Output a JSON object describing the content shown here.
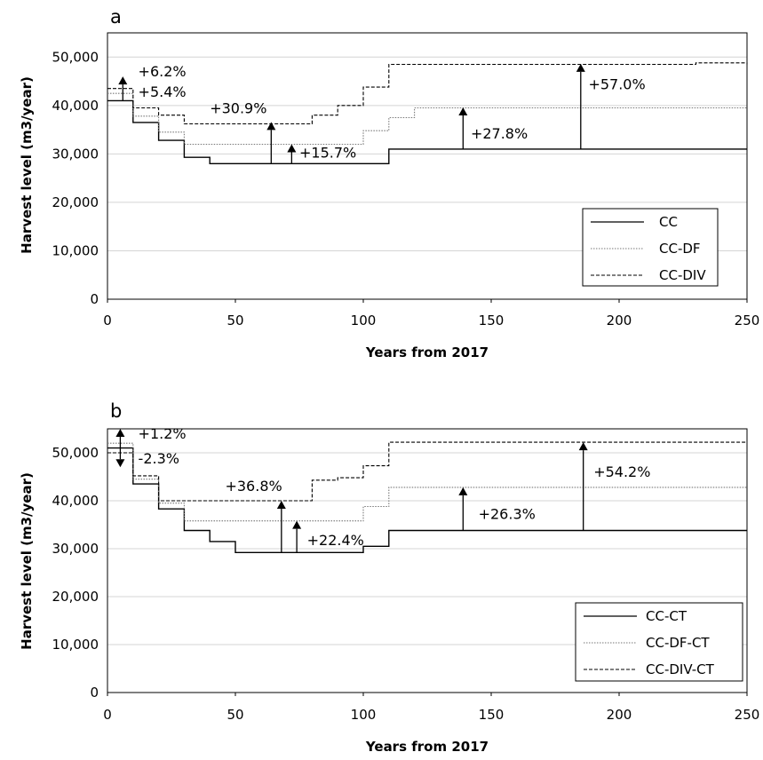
{
  "chart_data": [
    {
      "type": "line",
      "panel_label": "a",
      "title": "",
      "xlabel": "Years from 2017",
      "ylabel": "Harvest level (m3/year)",
      "xlim": [
        0,
        250
      ],
      "ylim": [
        0,
        55000
      ],
      "xticks": [
        "0",
        "50",
        "100",
        "150",
        "200",
        "250"
      ],
      "yticks": [
        "0",
        "10,000",
        "20,000",
        "30,000",
        "40,000",
        "50,000"
      ],
      "ytick_values": [
        0,
        10000,
        20000,
        30000,
        40000,
        50000
      ],
      "grid": "horizontal",
      "legend_position": "bottom-right",
      "series": [
        {
          "name": "CC",
          "style": "solid",
          "x": [
            0,
            10,
            20,
            30,
            40,
            100,
            110,
            250
          ],
          "y": [
            41000,
            36500,
            32800,
            29300,
            28000,
            28000,
            31000,
            31000
          ]
        },
        {
          "name": "CC-DF",
          "style": "dotted",
          "x": [
            0,
            10,
            20,
            30,
            90,
            100,
            110,
            120,
            250
          ],
          "y": [
            42500,
            37800,
            34500,
            32000,
            32000,
            34800,
            37500,
            39500,
            39500
          ]
        },
        {
          "name": "CC-DIV",
          "style": "dashed",
          "x": [
            0,
            10,
            20,
            30,
            70,
            80,
            90,
            100,
            110,
            230,
            250
          ],
          "y": [
            43500,
            39500,
            38000,
            36200,
            36200,
            38000,
            40000,
            43800,
            48500,
            48800,
            48500
          ]
        }
      ],
      "annotations": [
        {
          "text": "+6.2%",
          "x": 12,
          "y": 46000
        },
        {
          "text": "+5.4%",
          "x": 12,
          "y": 41800
        },
        {
          "text": "+30.9%",
          "x": 40,
          "y": 38400
        },
        {
          "text": "+15.7%",
          "x": 75,
          "y": 29200
        },
        {
          "text": "+27.8%",
          "x": 142,
          "y": 33200
        },
        {
          "text": "+57.0%",
          "x": 188,
          "y": 43400
        }
      ],
      "arrows": [
        {
          "x": 6,
          "y_from": 41000,
          "y_to": 46000,
          "direction": "up"
        },
        {
          "x": 64,
          "y_from": 28000,
          "y_to": 36600,
          "direction": "up"
        },
        {
          "x": 72,
          "y_from": 28000,
          "y_to": 32000,
          "direction": "up"
        },
        {
          "x": 139,
          "y_from": 31000,
          "y_to": 39600,
          "direction": "up"
        },
        {
          "x": 185,
          "y_from": 31000,
          "y_to": 48600,
          "direction": "up"
        }
      ]
    },
    {
      "type": "line",
      "panel_label": "b",
      "title": "",
      "xlabel": "Years from 2017",
      "ylabel": "Harvest level (m3/year)",
      "xlim": [
        0,
        250
      ],
      "ylim": [
        0,
        55000
      ],
      "xticks": [
        "0",
        "50",
        "100",
        "150",
        "200",
        "250"
      ],
      "yticks": [
        "0",
        "10,000",
        "20,000",
        "30,000",
        "40,000",
        "50,000"
      ],
      "ytick_values": [
        0,
        10000,
        20000,
        30000,
        40000,
        50000
      ],
      "grid": "horizontal",
      "legend_position": "bottom-right",
      "series": [
        {
          "name": "CC-CT",
          "style": "solid",
          "x": [
            0,
            10,
            20,
            30,
            40,
            50,
            100,
            110,
            250
          ],
          "y": [
            51000,
            43500,
            38300,
            33800,
            31500,
            29200,
            30500,
            33800,
            33800
          ]
        },
        {
          "name": "CC-DF-CT",
          "style": "dotted",
          "x": [
            0,
            10,
            20,
            30,
            100,
            110,
            250
          ],
          "y": [
            52000,
            44500,
            39500,
            35800,
            38800,
            42800,
            42800
          ]
        },
        {
          "name": "CC-DIV-CT",
          "style": "dashed",
          "x": [
            0,
            10,
            20,
            80,
            90,
            100,
            110,
            250
          ],
          "y": [
            50000,
            45200,
            40000,
            44300,
            44800,
            47300,
            52200,
            52200
          ]
        }
      ],
      "annotations": [
        {
          "text": "+1.2%",
          "x": 12,
          "y": 53000
        },
        {
          "text": "-2.3%",
          "x": 12,
          "y": 47800
        },
        {
          "text": "+36.8%",
          "x": 46,
          "y": 42000
        },
        {
          "text": "+22.4%",
          "x": 78,
          "y": 30700
        },
        {
          "text": "+26.3%",
          "x": 145,
          "y": 36200
        },
        {
          "text": "+54.2%",
          "x": 190,
          "y": 45000
        }
      ],
      "arrows": [
        {
          "x": 5,
          "y_from": 51000,
          "y_to": 55000,
          "direction": "up"
        },
        {
          "x": 5,
          "y_from": 51000,
          "y_to": 47000,
          "direction": "down"
        },
        {
          "x": 68,
          "y_from": 29200,
          "y_to": 40000,
          "direction": "up"
        },
        {
          "x": 74,
          "y_from": 29200,
          "y_to": 35800,
          "direction": "up"
        },
        {
          "x": 139,
          "y_from": 33800,
          "y_to": 42800,
          "direction": "up"
        },
        {
          "x": 186,
          "y_from": 33800,
          "y_to": 52200,
          "direction": "up"
        }
      ]
    }
  ]
}
